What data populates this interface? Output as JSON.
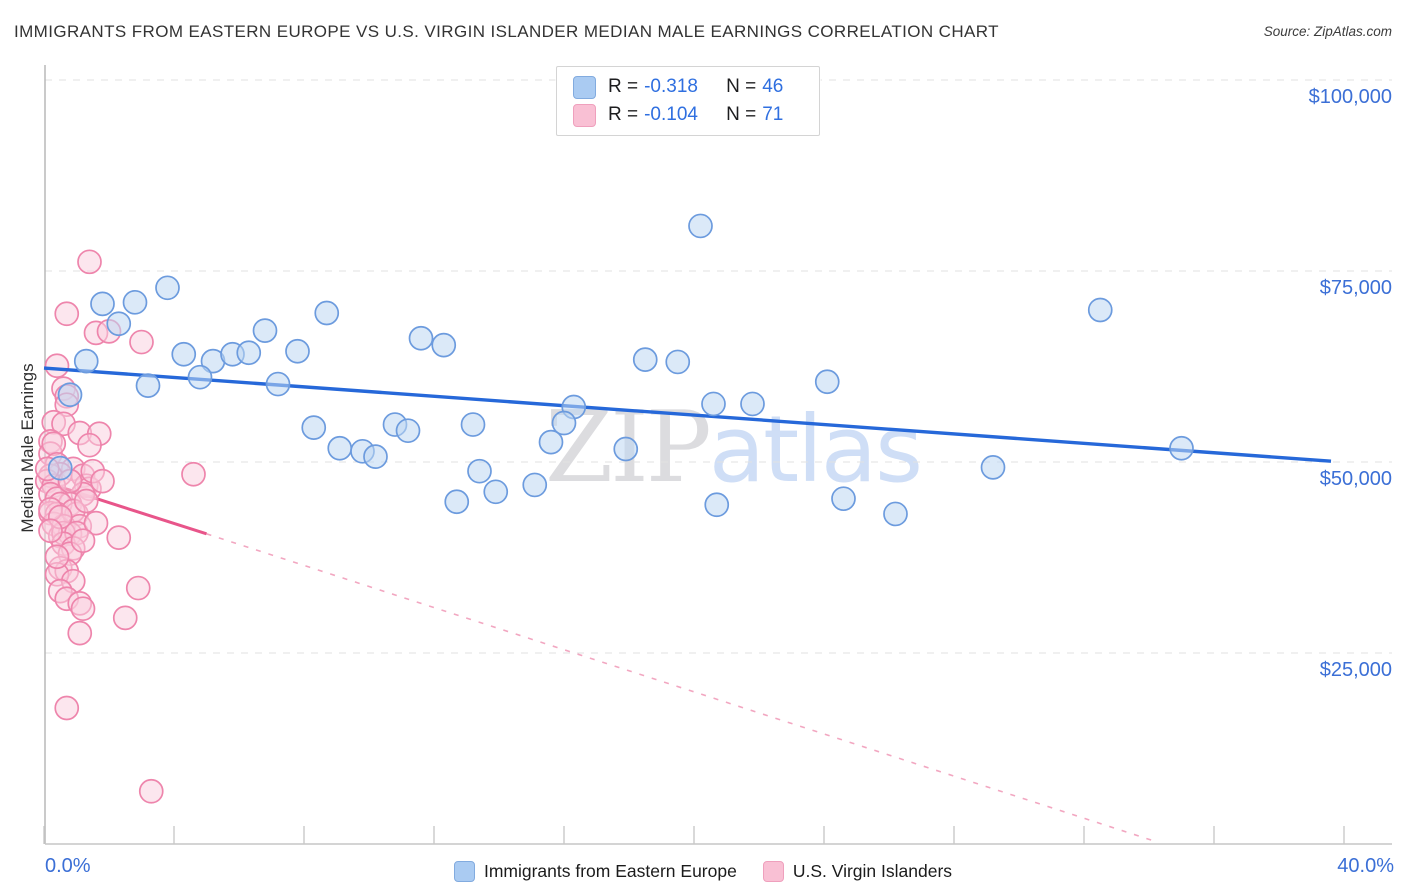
{
  "header": {
    "title": "IMMIGRANTS FROM EASTERN EUROPE VS U.S. VIRGIN ISLANDER MEDIAN MALE EARNINGS CORRELATION CHART",
    "source": "Source: ZipAtlas.com"
  },
  "axes": {
    "y_title": "Median Male Earnings",
    "y_tick_labels": [
      "$100,000",
      "$75,000",
      "$50,000",
      "$25,000"
    ],
    "x_min_label": "0.0%",
    "x_max_label": "40.0%"
  },
  "watermark": {
    "part1": "ZIP",
    "part2": "atlas"
  },
  "legend_box": {
    "rows": [
      {
        "r_label": "R =",
        "r_value": "-0.318",
        "n_label": "N =",
        "n_value": "46",
        "swatch_fill": "#aacbf2",
        "swatch_border": "#82abdf"
      },
      {
        "r_label": "R =",
        "r_value": "-0.104",
        "n_label": "N =",
        "n_value": "71",
        "swatch_fill": "#f9c0d4",
        "swatch_border": "#efa0bd"
      }
    ]
  },
  "bottom_legend": [
    {
      "label": "Immigrants from Eastern Europe",
      "swatch_fill": "#aacbf2",
      "swatch_border": "#82abdf"
    },
    {
      "label": "U.S. Virgin Islanders",
      "swatch_fill": "#f9c0d4",
      "swatch_border": "#efa0bd"
    }
  ],
  "chart_data": {
    "type": "scatter",
    "title": "Immigrants from Eastern Europe vs U.S. Virgin Islander Median Male Earnings",
    "xlabel": "Immigrants from Eastern Europe (%)",
    "ylabel": "Median Male Earnings ($)",
    "x_range": [
      0,
      41.5
    ],
    "y_range": [
      0,
      102000
    ],
    "grid_values": [
      100000,
      75000,
      50000,
      25000
    ],
    "x_tick_step_pct": 4,
    "legend_position": "bottom-center",
    "series": [
      {
        "name": "Immigrants from Eastern Europe",
        "R": -0.318,
        "N": 46,
        "marker": {
          "fill": "#bdd7f2",
          "fill_opacity": 0.55,
          "stroke": "#6c9bde"
        },
        "trend_color": "#2668d9",
        "trend": {
          "x1": 0,
          "y1": 62300,
          "x2": 39.6,
          "y2": 50100
        },
        "points": [
          [
            3.8,
            72800
          ],
          [
            1.8,
            70700
          ],
          [
            2.8,
            70900
          ],
          [
            2.3,
            68100
          ],
          [
            4.3,
            64100
          ],
          [
            1.3,
            63200
          ],
          [
            5.2,
            63200
          ],
          [
            5.8,
            64100
          ],
          [
            6.3,
            64300
          ],
          [
            3.2,
            60000
          ],
          [
            4.8,
            61100
          ],
          [
            0.8,
            58800
          ],
          [
            0.5,
            49200
          ],
          [
            8.7,
            69500
          ],
          [
            6.8,
            67200
          ],
          [
            7.8,
            64500
          ],
          [
            11.6,
            66200
          ],
          [
            12.3,
            65300
          ],
          [
            7.2,
            60200
          ],
          [
            8.3,
            54500
          ],
          [
            9.1,
            51800
          ],
          [
            9.8,
            51400
          ],
          [
            10.2,
            50700
          ],
          [
            10.8,
            54900
          ],
          [
            11.2,
            54100
          ],
          [
            18.5,
            63400
          ],
          [
            19.5,
            63100
          ],
          [
            16.3,
            57200
          ],
          [
            16.0,
            55100
          ],
          [
            15.6,
            52600
          ],
          [
            13.2,
            54900
          ],
          [
            17.9,
            51700
          ],
          [
            20.6,
            57600
          ],
          [
            21.8,
            57600
          ],
          [
            13.4,
            48800
          ],
          [
            13.9,
            46100
          ],
          [
            15.1,
            47000
          ],
          [
            12.7,
            44800
          ],
          [
            20.7,
            44400
          ],
          [
            24.1,
            60500
          ],
          [
            29.2,
            49300
          ],
          [
            24.6,
            45200
          ],
          [
            26.2,
            43200
          ],
          [
            32.5,
            69900
          ],
          [
            35.0,
            51800
          ],
          [
            20.2,
            80900
          ]
        ]
      },
      {
        "name": "U.S. Virgin Islanders",
        "R": -0.104,
        "N": 71,
        "marker": {
          "fill": "#f9cedd",
          "fill_opacity": 0.5,
          "stroke": "#ee85ac"
        },
        "trend_color": "#e8558a",
        "trend_dash_color": "#f2a7c1",
        "trend": {
          "x1": 0,
          "y1": 47400,
          "x2": 5.0,
          "y2": 40600
        },
        "trend_dashed": {
          "x1": 5.0,
          "y1": 40600,
          "x2": 34.3,
          "y2": 200
        },
        "points": [
          [
            1.4,
            76200
          ],
          [
            0.7,
            69400
          ],
          [
            1.6,
            66900
          ],
          [
            2.0,
            67100
          ],
          [
            3.0,
            65700
          ],
          [
            0.4,
            62600
          ],
          [
            0.6,
            59600
          ],
          [
            0.7,
            58600
          ],
          [
            0.7,
            57500
          ],
          [
            0.3,
            55200
          ],
          [
            0.6,
            55000
          ],
          [
            1.1,
            53800
          ],
          [
            1.7,
            53700
          ],
          [
            0.2,
            52700
          ],
          [
            1.4,
            52200
          ],
          [
            0.2,
            51100
          ],
          [
            0.3,
            52400
          ],
          [
            0.4,
            49700
          ],
          [
            0.9,
            49100
          ],
          [
            4.6,
            48400
          ],
          [
            0.5,
            48400
          ],
          [
            0.2,
            48200
          ],
          [
            1.2,
            48200
          ],
          [
            0.1,
            47500
          ],
          [
            0.3,
            46900
          ],
          [
            1.3,
            46900
          ],
          [
            1.4,
            46500
          ],
          [
            0.2,
            45800
          ],
          [
            1.2,
            45800
          ],
          [
            0.4,
            45200
          ],
          [
            0.8,
            44500
          ],
          [
            0.5,
            44500
          ],
          [
            0.2,
            43300
          ],
          [
            0.4,
            43200
          ],
          [
            1.0,
            43200
          ],
          [
            0.9,
            43600
          ],
          [
            0.3,
            41900
          ],
          [
            0.6,
            41600
          ],
          [
            1.1,
            41600
          ],
          [
            0.5,
            40300
          ],
          [
            0.8,
            40600
          ],
          [
            0.6,
            40700
          ],
          [
            1.0,
            40700
          ],
          [
            0.6,
            39300
          ],
          [
            0.9,
            38700
          ],
          [
            2.3,
            40100
          ],
          [
            0.8,
            38000
          ],
          [
            0.5,
            36100
          ],
          [
            0.7,
            35700
          ],
          [
            0.4,
            35300
          ],
          [
            0.9,
            34400
          ],
          [
            0.5,
            33100
          ],
          [
            2.9,
            33500
          ],
          [
            0.7,
            32100
          ],
          [
            1.1,
            31500
          ],
          [
            1.2,
            30800
          ],
          [
            2.5,
            29600
          ],
          [
            1.1,
            27600
          ],
          [
            0.7,
            17800
          ],
          [
            3.3,
            6900
          ],
          [
            0.1,
            49100
          ],
          [
            0.8,
            47500
          ],
          [
            1.5,
            48800
          ],
          [
            0.2,
            43800
          ],
          [
            1.3,
            44900
          ],
          [
            0.5,
            42800
          ],
          [
            1.6,
            42000
          ],
          [
            0.2,
            41000
          ],
          [
            1.2,
            39700
          ],
          [
            0.4,
            37600
          ],
          [
            1.8,
            47500
          ]
        ]
      }
    ]
  }
}
